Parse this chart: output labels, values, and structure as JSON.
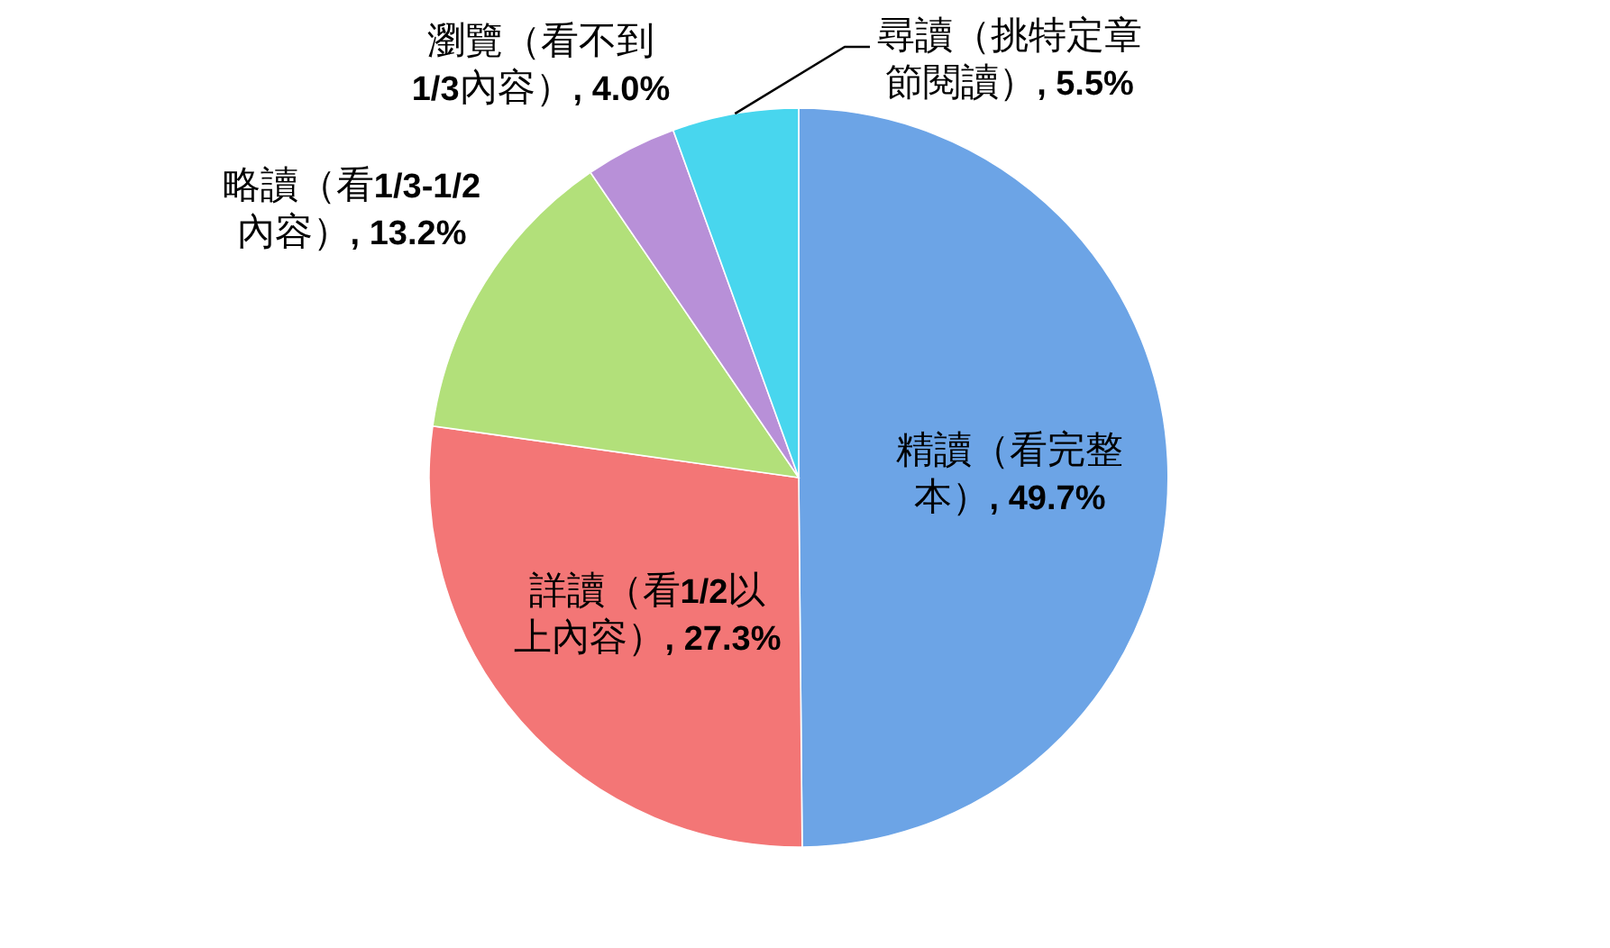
{
  "chart_data": {
    "type": "pie",
    "categories": [
      "精讀（看完整本）",
      "詳讀（看1/2以上內容）",
      "略讀（看1/3-1/2內容）",
      "瀏覽（看不到1/3內容）",
      "尋讀（挑特定章節閱讀）"
    ],
    "values": [
      49.7,
      27.3,
      13.2,
      4.0,
      5.5
    ],
    "colors": [
      "#6ca4e6",
      "#f37676",
      "#b2e07a",
      "#b890d8",
      "#48d6ee"
    ],
    "value_labels": [
      ", 49.7%",
      ", 27.3%",
      ", 13.2%",
      ", 4.0%",
      ", 5.5%"
    ]
  }
}
